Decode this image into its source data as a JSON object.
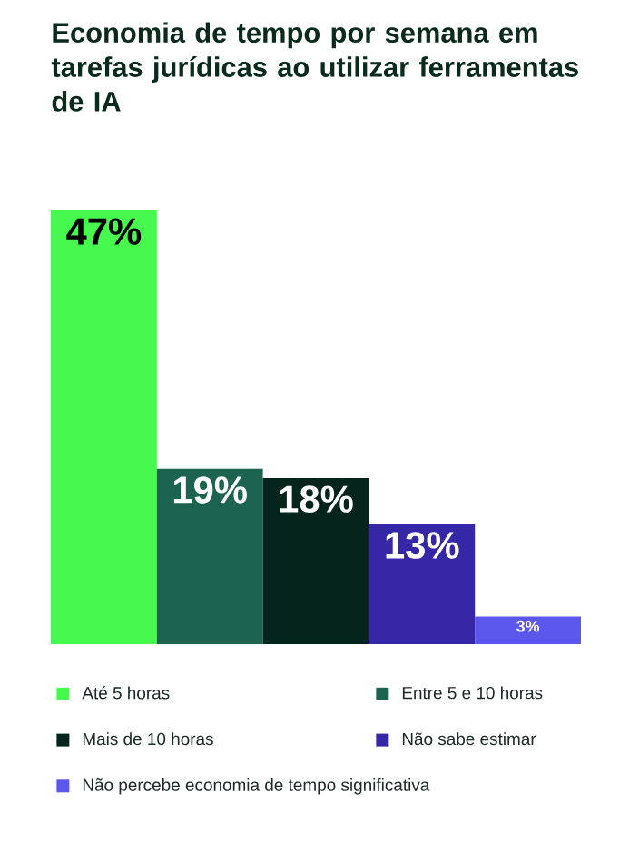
{
  "chart_data": {
    "type": "bar",
    "title": "Economia de tempo por semana em tarefas jurídicas ao utilizar ferramentas de IA",
    "categories": [
      null,
      null,
      null,
      null,
      null
    ],
    "series": [
      {
        "name": "Até 5 horas",
        "color": "#47f94f",
        "values": [
          47,
          null,
          null,
          null,
          null
        ],
        "value_labels": [
          "47%",
          null,
          null,
          null,
          null
        ]
      },
      {
        "name": "Entre 5 e 10 horas",
        "color": "#1c644f",
        "values": [
          null,
          19,
          null,
          null,
          null
        ],
        "value_labels": [
          null,
          "19%",
          null,
          null,
          null
        ]
      },
      {
        "name": "Mais de 10 horas",
        "color": "#05251c",
        "values": [
          null,
          null,
          18,
          null,
          null
        ],
        "value_labels": [
          null,
          null,
          "18%",
          null,
          null
        ]
      },
      {
        "name": "Não sabe estimar",
        "color": "#3527a6",
        "values": [
          null,
          null,
          null,
          13,
          null
        ],
        "value_labels": [
          null,
          null,
          null,
          "13%",
          null
        ]
      },
      {
        "name": "Não percebe economia de tempo significativa",
        "color": "#5b57ec",
        "values": [
          null,
          null,
          null,
          null,
          3
        ],
        "value_labels": [
          null,
          null,
          null,
          null,
          "3%"
        ]
      }
    ],
    "stacked": true,
    "legend": "bottom"
  }
}
